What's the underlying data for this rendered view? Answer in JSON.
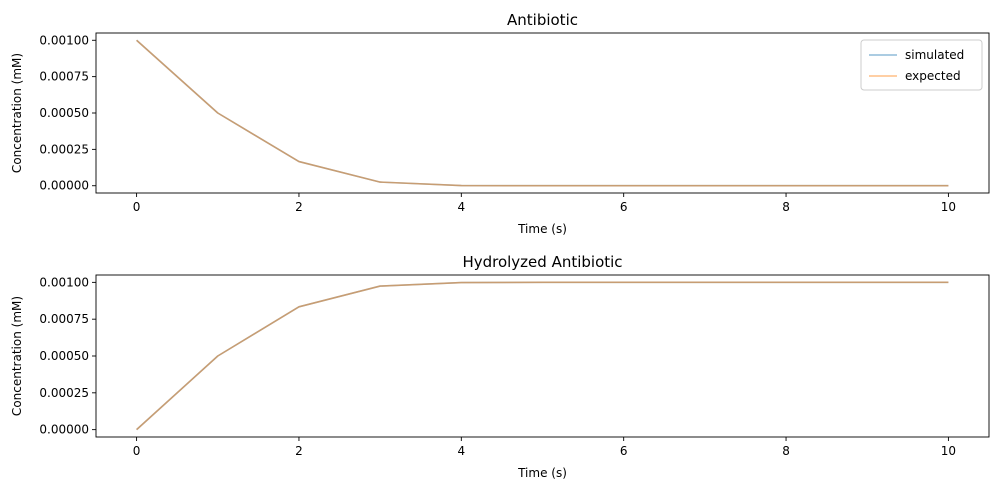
{
  "chart_data": [
    {
      "type": "line",
      "title": "Antibiotic",
      "xlabel": "Time (s)",
      "ylabel": "Concentration (mM)",
      "x": [
        0,
        1,
        2,
        3,
        4,
        5,
        6,
        7,
        8,
        9,
        10
      ],
      "xlim": [
        -0.5,
        10.5
      ],
      "ylim": [
        -5e-05,
        0.00105
      ],
      "xticks": [
        "0",
        "2",
        "4",
        "6",
        "8",
        "10"
      ],
      "xtick_values": [
        0,
        2,
        4,
        6,
        8,
        10
      ],
      "yticks": [
        "0.00000",
        "0.00025",
        "0.00050",
        "0.00075",
        "0.00100"
      ],
      "ytick_values": [
        0,
        0.00025,
        0.0005,
        0.00075,
        0.001
      ],
      "legend": "top-right",
      "grid": false,
      "series": [
        {
          "name": "simulated",
          "color": "#1f77b4",
          "values": [
            0.001,
            0.0005,
            0.000166,
            2.5e-05,
            1.2e-06,
            0.0,
            0.0,
            0.0,
            0.0,
            0.0,
            0.0
          ]
        },
        {
          "name": "expected",
          "color": "#ff7f0e",
          "values": [
            0.001,
            0.0005,
            0.000166,
            2.5e-05,
            1.2e-06,
            0.0,
            0.0,
            0.0,
            0.0,
            0.0,
            0.0
          ]
        }
      ]
    },
    {
      "type": "line",
      "title": "Hydrolyzed Antibiotic",
      "xlabel": "Time (s)",
      "ylabel": "Concentration (mM)",
      "x": [
        0,
        1,
        2,
        3,
        4,
        5,
        6,
        7,
        8,
        9,
        10
      ],
      "xlim": [
        -0.5,
        10.5
      ],
      "ylim": [
        -5e-05,
        0.00105
      ],
      "xticks": [
        "0",
        "2",
        "4",
        "6",
        "8",
        "10"
      ],
      "xtick_values": [
        0,
        2,
        4,
        6,
        8,
        10
      ],
      "yticks": [
        "0.00000",
        "0.00025",
        "0.00050",
        "0.00075",
        "0.00100"
      ],
      "ytick_values": [
        0,
        0.00025,
        0.0005,
        0.00075,
        0.001
      ],
      "grid": false,
      "series": [
        {
          "color": "#1f77b4",
          "values": [
            0.0,
            0.0005,
            0.000834,
            0.000975,
            0.0009988,
            0.001,
            0.001,
            0.001,
            0.001,
            0.001,
            0.001
          ]
        },
        {
          "color": "#ff7f0e",
          "values": [
            0.0,
            0.0005,
            0.000834,
            0.000975,
            0.0009988,
            0.001,
            0.001,
            0.001,
            0.001,
            0.001,
            0.001
          ]
        }
      ]
    }
  ]
}
